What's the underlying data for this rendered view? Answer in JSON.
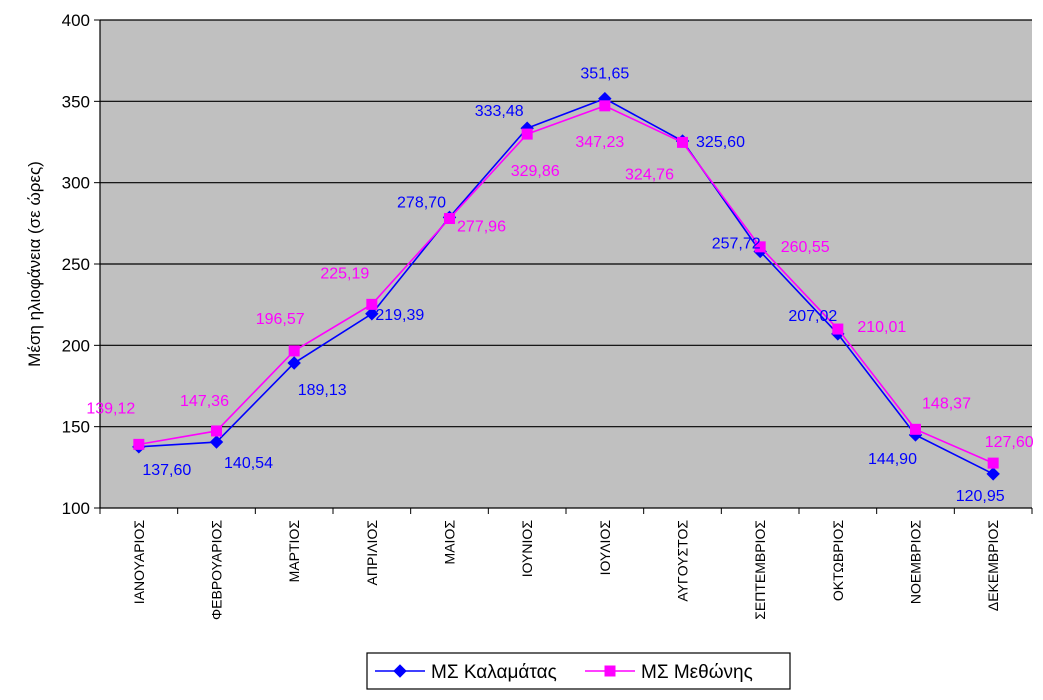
{
  "chart_data": {
    "type": "line",
    "title": "",
    "xlabel": "",
    "ylabel": "Μέση ηλιοφάνεια (σε ώρες)",
    "ylim": [
      100,
      400
    ],
    "yticks": [
      100,
      150,
      200,
      250,
      300,
      350,
      400
    ],
    "grid": "horizontal",
    "legend_position": "bottom",
    "plot_background": "#c0c0c0",
    "categories": [
      "ΙΑΝΟΥΑΡΙΟΣ",
      "ΦΕΒΡΟΥΑΡΙΟΣ",
      "ΜΑΡΤΙΟΣ",
      "ΑΠΡΙΛΙΟΣ",
      "ΜΑΙΟΣ",
      "ΙΟΥΝΙΟΣ",
      "ΙΟΥΛΙΟΣ",
      "ΑΥΓΟΥΣΤΟΣ",
      "ΣΕΠΤΕΜΒΡΙΟΣ",
      "ΟΚΤΩΒΡΙΟΣ",
      "ΝΟΕΜΒΡΙΟΣ",
      "ΔΕΚΕΜΒΡΙΟΣ"
    ],
    "series": [
      {
        "name": "ΜΣ Καλαμάτας",
        "color": "#0000ff",
        "marker": "diamond",
        "values": [
          137.6,
          140.54,
          189.13,
          219.39,
          278.7,
          333.48,
          351.65,
          325.6,
          257.72,
          207.02,
          144.9,
          120.95
        ],
        "labels": [
          "137,60",
          "140,54",
          "189,13",
          "219,39",
          "278,70",
          "333,48",
          "351,65",
          "325,60",
          "257,72",
          "207,02",
          "144,90",
          "120,95"
        ]
      },
      {
        "name": "ΜΣ Μεθώνης",
        "color": "#ff00ff",
        "marker": "square",
        "values": [
          139.12,
          147.36,
          196.57,
          225.19,
          277.96,
          329.86,
          347.23,
          324.76,
          260.55,
          210.01,
          148.37,
          127.6
        ],
        "labels": [
          "139,12",
          "147,36",
          "196,57",
          "225,19",
          "277,96",
          "329,86",
          "347,23",
          "324,76",
          "260,55",
          "210,01",
          "148,37",
          "127,60"
        ]
      }
    ]
  }
}
